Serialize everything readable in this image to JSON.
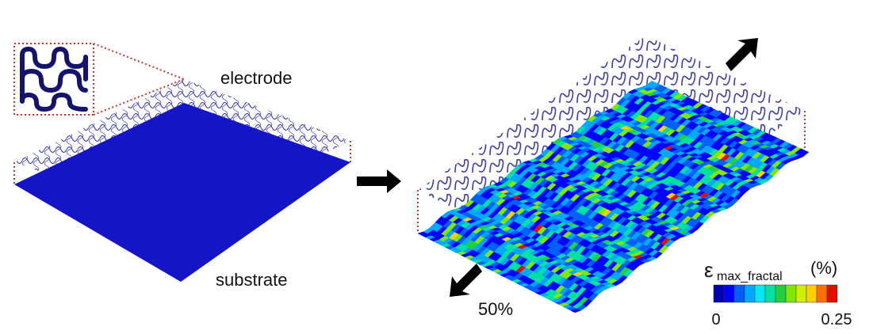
{
  "labels": {
    "electrode": "electrode",
    "substrate": "substrate",
    "strain": "50%"
  },
  "legend": {
    "symbol": "ε",
    "subscript": "max_fractal",
    "unit": "(%)",
    "min": "0",
    "max": "0.25"
  }
}
